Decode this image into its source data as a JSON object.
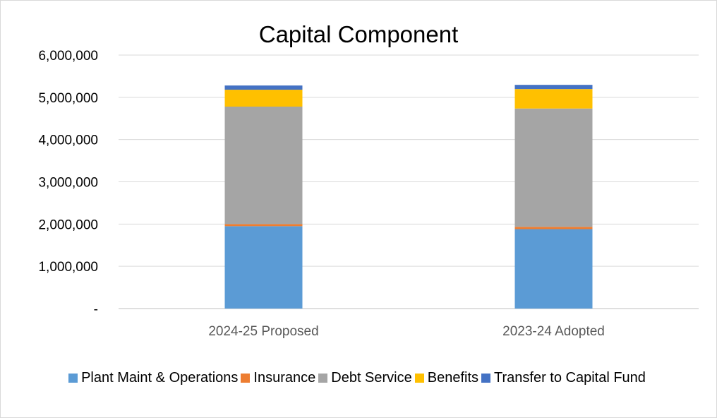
{
  "chart_data": {
    "type": "bar",
    "stacked": true,
    "title": "Capital Component",
    "xlabel": "",
    "ylabel": "",
    "ylim": [
      0,
      6000000
    ],
    "yticks": [
      0,
      1000000,
      2000000,
      3000000,
      4000000,
      5000000,
      6000000
    ],
    "ytick_labels": [
      "-",
      "1,000,000",
      "2,000,000",
      "3,000,000",
      "4,000,000",
      "5,000,000",
      "6,000,000"
    ],
    "grid": true,
    "legend_position": "bottom",
    "categories": [
      "2024-25 Proposed",
      "2023-24 Adopted"
    ],
    "series": [
      {
        "name": "Plant Maint & Operations",
        "color": "#5b9bd5",
        "values": [
          1950000,
          1880000
        ]
      },
      {
        "name": "Insurance",
        "color": "#ed7d31",
        "values": [
          50000,
          55000
        ]
      },
      {
        "name": "Debt Service",
        "color": "#a5a5a5",
        "values": [
          2780000,
          2800000
        ]
      },
      {
        "name": "Benefits",
        "color": "#ffc000",
        "values": [
          400000,
          460000
        ]
      },
      {
        "name": "Transfer to Capital Fund",
        "color": "#4472c4",
        "values": [
          100000,
          100000
        ]
      }
    ]
  }
}
